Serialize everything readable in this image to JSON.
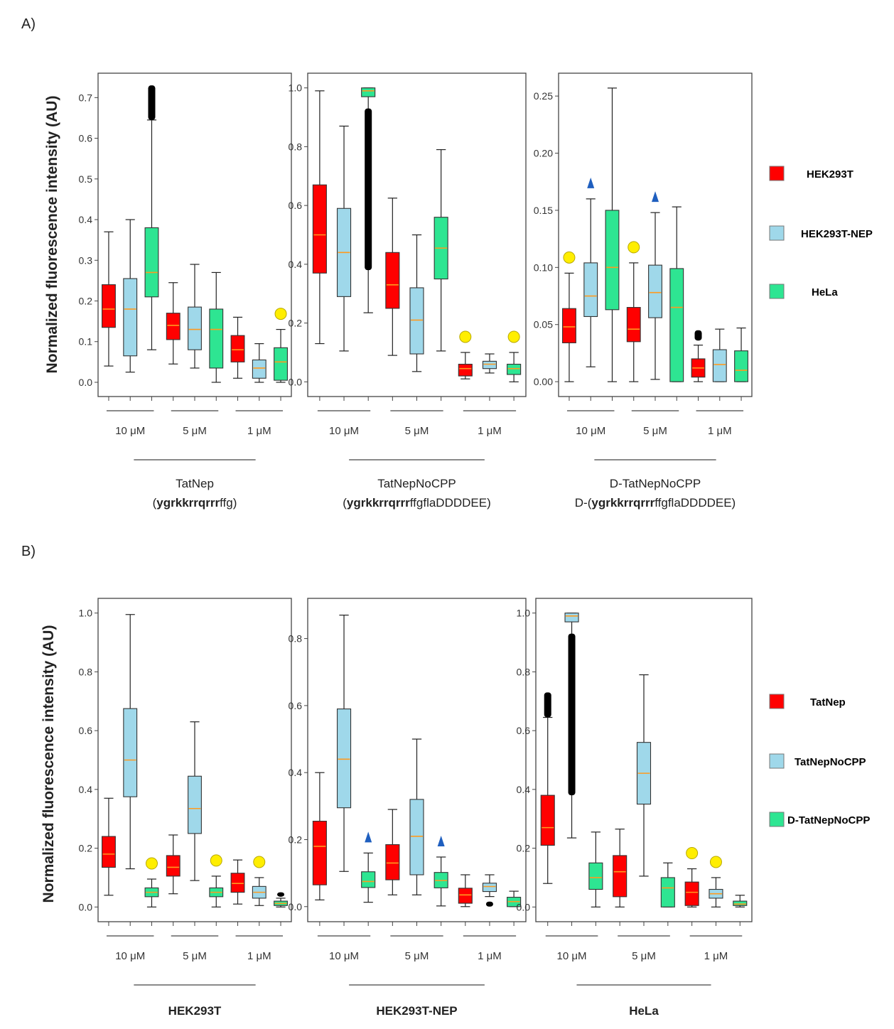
{
  "figure": {
    "panels": [
      {
        "label": "A)",
        "ylabel": "Normalized fluorescence intensity (AU)",
        "legend": [
          {
            "name": "HEK293T",
            "color": "#ff0000"
          },
          {
            "name": "HEK293T-NEP",
            "color": "#9fd8ea"
          },
          {
            "name": "HeLa",
            "color": "#2ee592"
          }
        ]
      },
      {
        "label": "B)",
        "ylabel": "Normalized fluorescence intensity (AU)",
        "legend": [
          {
            "name": "TatNep",
            "color": "#ff0000"
          },
          {
            "name": "TatNepNoCPP",
            "color": "#9fd8ea"
          },
          {
            "name": "D-TatNepNoCPP",
            "color": "#2ee592"
          }
        ]
      }
    ]
  },
  "chart_data": [
    {
      "type": "box",
      "panel": "A",
      "group": "TatNep",
      "ylim": [
        -0.035,
        0.76
      ],
      "yticks": [
        "0.0",
        "0.1",
        "0.2",
        "0.3",
        "0.4",
        "0.5",
        "0.6",
        "0.7"
      ],
      "ytickvals": [
        0,
        0.1,
        0.2,
        0.3,
        0.4,
        0.5,
        0.6,
        0.7
      ],
      "concentrations": [
        "10 μM",
        "5 μM",
        "1 μM"
      ],
      "xtitle_lines": [
        [
          {
            "t": "TatNep",
            "b": false
          }
        ],
        [
          {
            "t": "(",
            "b": false
          },
          {
            "t": "ygrkkrrqrrr",
            "b": true
          },
          {
            "t": "ffg)",
            "b": false
          }
        ]
      ],
      "boxes": [
        {
          "series": "HEK293T",
          "color": "#ff0000",
          "min": 0.04,
          "q1": 0.135,
          "median": 0.18,
          "q3": 0.24,
          "max": 0.37
        },
        {
          "series": "HEK293T-NEP",
          "color": "#9fd8ea",
          "min": 0.025,
          "q1": 0.065,
          "median": 0.18,
          "q3": 0.255,
          "max": 0.4
        },
        {
          "series": "HeLa",
          "color": "#2ee592",
          "min": 0.08,
          "q1": 0.21,
          "median": 0.27,
          "q3": 0.38,
          "max": 0.645,
          "outliers_from": 0.645,
          "outliers_to": 0.73
        },
        {
          "series": "HEK293T",
          "color": "#ff0000",
          "min": 0.045,
          "q1": 0.105,
          "median": 0.14,
          "q3": 0.17,
          "max": 0.245
        },
        {
          "series": "HEK293T-NEP",
          "color": "#9fd8ea",
          "min": 0.035,
          "q1": 0.08,
          "median": 0.13,
          "q3": 0.185,
          "max": 0.29
        },
        {
          "series": "HeLa",
          "color": "#2ee592",
          "min": 0.0,
          "q1": 0.035,
          "median": 0.13,
          "q3": 0.18,
          "max": 0.27
        },
        {
          "series": "HEK293T",
          "color": "#ff0000",
          "min": 0.01,
          "q1": 0.05,
          "median": 0.08,
          "q3": 0.115,
          "max": 0.16
        },
        {
          "series": "HEK293T-NEP",
          "color": "#9fd8ea",
          "min": 0.0,
          "q1": 0.01,
          "median": 0.035,
          "q3": 0.055,
          "max": 0.095
        },
        {
          "series": "HeLa",
          "color": "#2ee592",
          "min": 0.0,
          "q1": 0.005,
          "median": 0.05,
          "q3": 0.085,
          "max": 0.13,
          "marker": "circle"
        }
      ]
    },
    {
      "type": "box",
      "panel": "A",
      "group": "TatNepNoCPP",
      "ylim": [
        -0.05,
        1.05
      ],
      "yticks": [
        "0.0",
        "0.2",
        "0.4",
        "0.6",
        "0.8",
        "1.0"
      ],
      "ytickvals": [
        0,
        0.2,
        0.4,
        0.6,
        0.8,
        1.0
      ],
      "concentrations": [
        "10 μM",
        "5 μM",
        "1 μM"
      ],
      "xtitle_lines": [
        [
          {
            "t": "TatNepNoCPP",
            "b": false
          }
        ],
        [
          {
            "t": "(",
            "b": false
          },
          {
            "t": "ygrkkrrqrrr",
            "b": true
          },
          {
            "t": "ffgflaDDDDEE)",
            "b": false
          }
        ]
      ],
      "boxes": [
        {
          "series": "HEK293T",
          "color": "#ff0000",
          "min": 0.13,
          "q1": 0.37,
          "median": 0.5,
          "q3": 0.67,
          "max": 0.99
        },
        {
          "series": "HEK293T-NEP",
          "color": "#9fd8ea",
          "min": 0.105,
          "q1": 0.29,
          "median": 0.44,
          "q3": 0.59,
          "max": 0.87
        },
        {
          "series": "HeLa",
          "color": "#2ee592",
          "min": 0.235,
          "q1": 0.97,
          "median": 0.99,
          "q3": 1.0,
          "max": 1.0,
          "outliers_from": 0.38,
          "outliers_to": 0.93
        },
        {
          "series": "HEK293T",
          "color": "#ff0000",
          "min": 0.09,
          "q1": 0.25,
          "median": 0.33,
          "q3": 0.44,
          "max": 0.625
        },
        {
          "series": "HEK293T-NEP",
          "color": "#9fd8ea",
          "min": 0.035,
          "q1": 0.095,
          "median": 0.21,
          "q3": 0.32,
          "max": 0.5
        },
        {
          "series": "HeLa",
          "color": "#2ee592",
          "min": 0.105,
          "q1": 0.35,
          "median": 0.455,
          "q3": 0.56,
          "max": 0.79
        },
        {
          "series": "HEK293T",
          "color": "#ff0000",
          "min": 0.01,
          "q1": 0.02,
          "median": 0.045,
          "q3": 0.06,
          "max": 0.1,
          "marker": "circle"
        },
        {
          "series": "HEK293T-NEP",
          "color": "#9fd8ea",
          "min": 0.03,
          "q1": 0.045,
          "median": 0.06,
          "q3": 0.07,
          "max": 0.095
        },
        {
          "series": "HeLa",
          "color": "#2ee592",
          "min": 0.0,
          "q1": 0.025,
          "median": 0.045,
          "q3": 0.06,
          "max": 0.1,
          "marker": "circle"
        }
      ]
    },
    {
      "type": "box",
      "panel": "A",
      "group": "D-TatNepNoCPP",
      "ylim": [
        -0.013,
        0.27
      ],
      "yticks": [
        "0.00",
        "0.05",
        "0.10",
        "0.15",
        "0.20",
        "0.25"
      ],
      "ytickvals": [
        0,
        0.05,
        0.1,
        0.15,
        0.2,
        0.25
      ],
      "concentrations": [
        "10 μM",
        "5 μM",
        "1 μM"
      ],
      "xtitle_lines": [
        [
          {
            "t": "D-TatNepNoCPP",
            "b": false
          }
        ],
        [
          {
            "t": "D-(",
            "b": false
          },
          {
            "t": "ygrkkrrqrrr",
            "b": true
          },
          {
            "t": "ffgflaDDDDEE)",
            "b": false
          }
        ]
      ],
      "boxes": [
        {
          "series": "HEK293T",
          "color": "#ff0000",
          "min": 0.0,
          "q1": 0.034,
          "median": 0.048,
          "q3": 0.064,
          "max": 0.095,
          "marker": "circle"
        },
        {
          "series": "HEK293T-NEP",
          "color": "#9fd8ea",
          "min": 0.013,
          "q1": 0.057,
          "median": 0.075,
          "q3": 0.104,
          "max": 0.16,
          "marker": "triangle"
        },
        {
          "series": "HeLa",
          "color": "#2ee592",
          "min": 0.0,
          "q1": 0.063,
          "median": 0.1,
          "q3": 0.15,
          "max": 0.257
        },
        {
          "series": "HEK293T",
          "color": "#ff0000",
          "min": 0.0,
          "q1": 0.035,
          "median": 0.046,
          "q3": 0.065,
          "max": 0.104,
          "marker": "circle"
        },
        {
          "series": "HEK293T-NEP",
          "color": "#9fd8ea",
          "min": 0.002,
          "q1": 0.056,
          "median": 0.078,
          "q3": 0.102,
          "max": 0.148,
          "marker": "triangle"
        },
        {
          "series": "HeLa",
          "color": "#2ee592",
          "min": 0.0,
          "q1": 0.0,
          "median": 0.065,
          "q3": 0.099,
          "max": 0.153
        },
        {
          "series": "HEK293T",
          "color": "#ff0000",
          "min": 0.0,
          "q1": 0.004,
          "median": 0.012,
          "q3": 0.02,
          "max": 0.032,
          "outliers_from": 0.036,
          "outliers_to": 0.045
        },
        {
          "series": "HEK293T-NEP",
          "color": "#9fd8ea",
          "min": 0.0,
          "q1": 0.0,
          "median": 0.015,
          "q3": 0.028,
          "max": 0.046
        },
        {
          "series": "HeLa",
          "color": "#2ee592",
          "min": 0.0,
          "q1": 0.0,
          "median": 0.01,
          "q3": 0.027,
          "max": 0.047
        }
      ]
    },
    {
      "type": "box",
      "panel": "B",
      "group": "HEK293T",
      "ylim": [
        -0.05,
        1.05
      ],
      "yticks": [
        "0.0",
        "0.2",
        "0.4",
        "0.6",
        "0.8",
        "1.0"
      ],
      "ytickvals": [
        0,
        0.2,
        0.4,
        0.6,
        0.8,
        1.0
      ],
      "concentrations": [
        "10 μM",
        "5 μM",
        "1 μM"
      ],
      "xtitle_lines": [
        [
          {
            "t": "HEK293T",
            "b": true
          }
        ]
      ],
      "boxes": [
        {
          "series": "TatNep",
          "color": "#ff0000",
          "min": 0.04,
          "q1": 0.135,
          "median": 0.18,
          "q3": 0.24,
          "max": 0.37
        },
        {
          "series": "TatNepNoCPP",
          "color": "#9fd8ea",
          "min": 0.13,
          "q1": 0.375,
          "median": 0.5,
          "q3": 0.675,
          "max": 0.995
        },
        {
          "series": "D-TatNepNoCPP",
          "color": "#2ee592",
          "min": 0.0,
          "q1": 0.035,
          "median": 0.05,
          "q3": 0.065,
          "max": 0.095,
          "marker": "circle"
        },
        {
          "series": "TatNep",
          "color": "#ff0000",
          "min": 0.045,
          "q1": 0.105,
          "median": 0.135,
          "q3": 0.175,
          "max": 0.245
        },
        {
          "series": "TatNepNoCPP",
          "color": "#9fd8ea",
          "min": 0.09,
          "q1": 0.25,
          "median": 0.335,
          "q3": 0.445,
          "max": 0.63
        },
        {
          "series": "D-TatNepNoCPP",
          "color": "#2ee592",
          "min": 0.0,
          "q1": 0.035,
          "median": 0.05,
          "q3": 0.065,
          "max": 0.105,
          "marker": "circle"
        },
        {
          "series": "TatNep",
          "color": "#ff0000",
          "min": 0.01,
          "q1": 0.05,
          "median": 0.08,
          "q3": 0.115,
          "max": 0.16
        },
        {
          "series": "TatNepNoCPP",
          "color": "#9fd8ea",
          "min": 0.005,
          "q1": 0.03,
          "median": 0.05,
          "q3": 0.07,
          "max": 0.1,
          "marker": "circle"
        },
        {
          "series": "D-TatNepNoCPP",
          "color": "#2ee592",
          "min": 0.0,
          "q1": 0.005,
          "median": 0.012,
          "q3": 0.02,
          "max": 0.03,
          "outliers_from": 0.035,
          "outliers_to": 0.05
        }
      ]
    },
    {
      "type": "box",
      "panel": "B",
      "group": "HEK293T-NEP",
      "ylim": [
        -0.045,
        0.92
      ],
      "yticks": [
        "0.0",
        "0.2",
        "0.4",
        "0.6",
        "0.8"
      ],
      "ytickvals": [
        0,
        0.2,
        0.4,
        0.6,
        0.8
      ],
      "concentrations": [
        "10 μM",
        "5 μM",
        "1 μM"
      ],
      "xtitle_lines": [
        [
          {
            "t": "HEK293T-NEP",
            "b": true
          }
        ]
      ],
      "boxes": [
        {
          "series": "TatNep",
          "color": "#ff0000",
          "min": 0.02,
          "q1": 0.065,
          "median": 0.18,
          "q3": 0.255,
          "max": 0.4
        },
        {
          "series": "TatNepNoCPP",
          "color": "#9fd8ea",
          "min": 0.105,
          "q1": 0.295,
          "median": 0.44,
          "q3": 0.59,
          "max": 0.87
        },
        {
          "series": "D-TatNepNoCPP",
          "color": "#2ee592",
          "min": 0.013,
          "q1": 0.057,
          "median": 0.075,
          "q3": 0.104,
          "max": 0.16,
          "marker": "triangle"
        },
        {
          "series": "TatNep",
          "color": "#ff0000",
          "min": 0.035,
          "q1": 0.08,
          "median": 0.13,
          "q3": 0.185,
          "max": 0.29
        },
        {
          "series": "TatNepNoCPP",
          "color": "#9fd8ea",
          "min": 0.035,
          "q1": 0.095,
          "median": 0.21,
          "q3": 0.32,
          "max": 0.5
        },
        {
          "series": "D-TatNepNoCPP",
          "color": "#2ee592",
          "min": 0.002,
          "q1": 0.056,
          "median": 0.078,
          "q3": 0.102,
          "max": 0.148,
          "marker": "triangle"
        },
        {
          "series": "TatNep",
          "color": "#ff0000",
          "min": 0.0,
          "q1": 0.01,
          "median": 0.035,
          "q3": 0.055,
          "max": 0.095
        },
        {
          "series": "TatNepNoCPP",
          "color": "#9fd8ea",
          "min": 0.03,
          "q1": 0.045,
          "median": 0.06,
          "q3": 0.07,
          "max": 0.095,
          "outliers_from": 0.0,
          "outliers_to": 0.015
        },
        {
          "series": "D-TatNepNoCPP",
          "color": "#2ee592",
          "min": 0.0,
          "q1": 0.0,
          "median": 0.015,
          "q3": 0.028,
          "max": 0.046
        }
      ]
    },
    {
      "type": "box",
      "panel": "B",
      "group": "HeLa",
      "ylim": [
        -0.05,
        1.05
      ],
      "yticks": [
        "0.0",
        "0.2",
        "0.4",
        "0.6",
        "0.8",
        "1.0"
      ],
      "ytickvals": [
        0,
        0.2,
        0.4,
        0.6,
        0.8,
        1.0
      ],
      "concentrations": [
        "10 μM",
        "5 μM",
        "1 μM"
      ],
      "xtitle_lines": [
        [
          {
            "t": "HeLa",
            "b": true
          }
        ]
      ],
      "boxes": [
        {
          "series": "TatNep",
          "color": "#ff0000",
          "min": 0.08,
          "q1": 0.21,
          "median": 0.27,
          "q3": 0.38,
          "max": 0.645,
          "outliers_from": 0.645,
          "outliers_to": 0.73
        },
        {
          "series": "TatNepNoCPP",
          "color": "#9fd8ea",
          "min": 0.235,
          "q1": 0.97,
          "median": 0.99,
          "q3": 1.0,
          "max": 1.0,
          "outliers_from": 0.38,
          "outliers_to": 0.93
        },
        {
          "series": "D-TatNepNoCPP",
          "color": "#2ee592",
          "min": 0.0,
          "q1": 0.06,
          "median": 0.1,
          "q3": 0.15,
          "max": 0.255
        },
        {
          "series": "TatNep",
          "color": "#ff0000",
          "min": 0.0,
          "q1": 0.035,
          "median": 0.12,
          "q3": 0.175,
          "max": 0.265
        },
        {
          "series": "TatNepNoCPP",
          "color": "#9fd8ea",
          "min": 0.105,
          "q1": 0.35,
          "median": 0.455,
          "q3": 0.56,
          "max": 0.79
        },
        {
          "series": "D-TatNepNoCPP",
          "color": "#2ee592",
          "min": 0.0,
          "q1": 0.0,
          "median": 0.065,
          "q3": 0.1,
          "max": 0.15
        },
        {
          "series": "TatNep",
          "color": "#ff0000",
          "min": 0.0,
          "q1": 0.005,
          "median": 0.05,
          "q3": 0.085,
          "max": 0.13,
          "marker": "circle"
        },
        {
          "series": "TatNepNoCPP",
          "color": "#9fd8ea",
          "min": 0.0,
          "q1": 0.03,
          "median": 0.045,
          "q3": 0.06,
          "max": 0.1,
          "marker": "circle"
        },
        {
          "series": "D-TatNepNoCPP",
          "color": "#2ee592",
          "min": 0.0,
          "q1": 0.005,
          "median": 0.01,
          "q3": 0.02,
          "max": 0.04
        }
      ]
    }
  ]
}
